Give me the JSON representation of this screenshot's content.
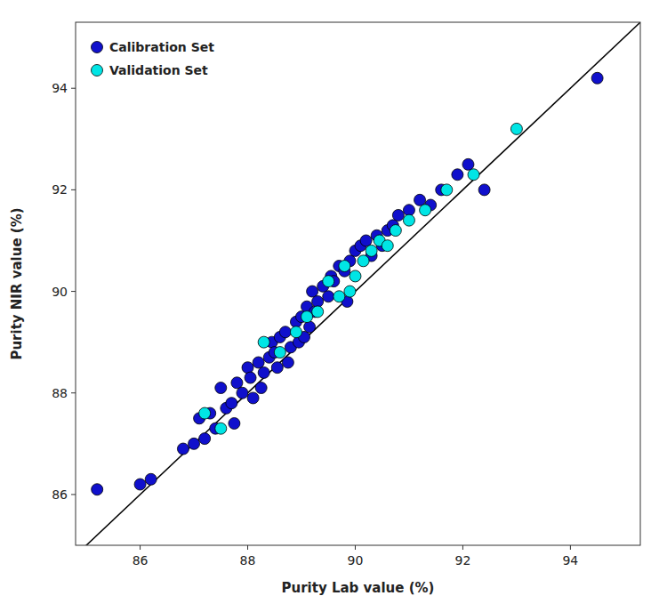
{
  "chart_data": {
    "type": "scatter",
    "xlabel": "Purity Lab value (%)",
    "ylabel": "Purity NIR value (%)",
    "xlim": [
      84.8,
      95.3
    ],
    "ylim": [
      85.0,
      95.3
    ],
    "xticks": [
      86,
      88,
      90,
      92,
      94
    ],
    "yticks": [
      86,
      88,
      90,
      92,
      94
    ],
    "grid": false,
    "legend": "upper left",
    "marker": "circle",
    "series": [
      {
        "name": "Calibration Set",
        "color": "#1010cc",
        "x": [
          85.2,
          86.0,
          86.2,
          86.8,
          87.0,
          87.1,
          87.2,
          87.3,
          87.4,
          87.5,
          87.6,
          87.7,
          87.75,
          87.8,
          87.9,
          88.0,
          88.05,
          88.1,
          88.2,
          88.25,
          88.3,
          88.4,
          88.45,
          88.5,
          88.55,
          88.6,
          88.7,
          88.75,
          88.8,
          88.9,
          88.95,
          89.0,
          89.05,
          89.1,
          89.15,
          89.2,
          89.25,
          89.3,
          89.4,
          89.5,
          89.55,
          89.6,
          89.7,
          89.8,
          89.85,
          89.9,
          90.0,
          90.1,
          90.2,
          90.3,
          90.4,
          90.5,
          90.6,
          90.7,
          90.8,
          91.0,
          91.2,
          91.4,
          91.6,
          91.9,
          92.1,
          92.4,
          94.5
        ],
        "values": [
          86.1,
          86.2,
          86.3,
          86.9,
          87.0,
          87.5,
          87.1,
          87.6,
          87.3,
          88.1,
          87.7,
          87.8,
          87.4,
          88.2,
          88.0,
          88.5,
          88.3,
          87.9,
          88.6,
          88.1,
          88.4,
          88.7,
          89.0,
          88.8,
          88.5,
          89.1,
          89.2,
          88.6,
          88.9,
          89.4,
          89.0,
          89.5,
          89.1,
          89.7,
          89.3,
          90.0,
          89.6,
          89.8,
          90.1,
          89.9,
          90.3,
          90.2,
          90.5,
          90.4,
          89.8,
          90.6,
          90.8,
          90.9,
          91.0,
          90.7,
          91.1,
          90.9,
          91.2,
          91.3,
          91.5,
          91.6,
          91.8,
          91.7,
          92.0,
          92.3,
          92.5,
          92.0,
          94.2
        ]
      },
      {
        "name": "Validation Set",
        "color": "#00e5e5",
        "x": [
          87.2,
          87.5,
          88.3,
          88.6,
          88.9,
          89.1,
          89.3,
          89.5,
          89.7,
          89.8,
          89.9,
          90.0,
          90.15,
          90.3,
          90.45,
          90.6,
          90.75,
          91.0,
          91.3,
          91.7,
          92.2,
          93.0
        ],
        "values": [
          87.6,
          87.3,
          89.0,
          88.8,
          89.2,
          89.5,
          89.6,
          90.2,
          89.9,
          90.5,
          90.0,
          90.3,
          90.6,
          90.8,
          91.0,
          90.9,
          91.2,
          91.4,
          91.6,
          92.0,
          92.3,
          93.2
        ]
      }
    ]
  }
}
